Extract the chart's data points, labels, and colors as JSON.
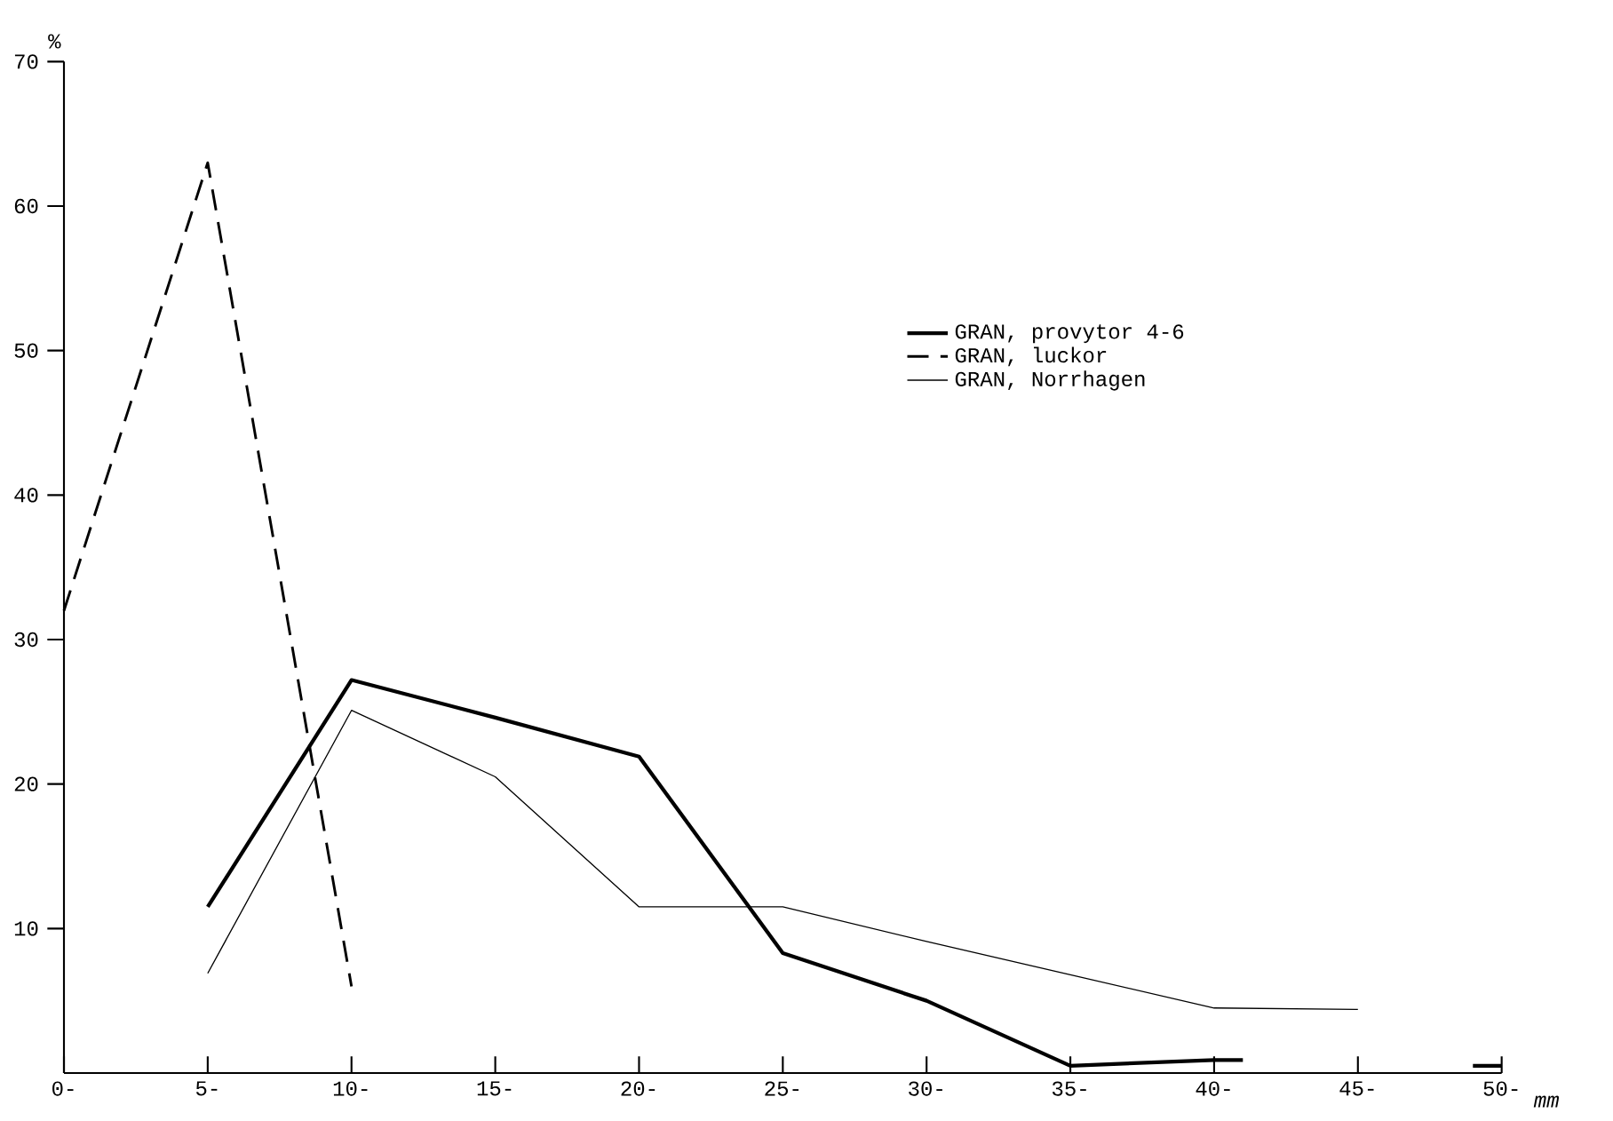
{
  "chart_data": {
    "type": "line",
    "xlabel": "mm",
    "ylabel": "%",
    "xlim": [
      0,
      50
    ],
    "ylim": [
      0,
      70
    ],
    "xticks": [
      {
        "value": 0,
        "label": "0-"
      },
      {
        "value": 5,
        "label": "5-"
      },
      {
        "value": 10,
        "label": "10-"
      },
      {
        "value": 15,
        "label": "15-"
      },
      {
        "value": 20,
        "label": "20-"
      },
      {
        "value": 25,
        "label": "25-"
      },
      {
        "value": 30,
        "label": "30-"
      },
      {
        "value": 35,
        "label": "35-"
      },
      {
        "value": 40,
        "label": "40-"
      },
      {
        "value": 45,
        "label": "45-"
      },
      {
        "value": 50,
        "label": "50-"
      }
    ],
    "yticks": [
      10,
      20,
      30,
      40,
      50,
      60,
      70
    ],
    "legend": "right",
    "series": [
      {
        "name": "GRAN, provytor 4-6",
        "color": "#000000",
        "line_style": "solid",
        "x": [
          5,
          10,
          15,
          20,
          25,
          30,
          35,
          40,
          41,
          45,
          49,
          50
        ],
        "values": [
          11.5,
          27.2,
          24.6,
          21.9,
          8.3,
          5.0,
          0.5,
          0.9,
          0.9,
          null,
          0.5,
          0.5
        ]
      },
      {
        "name": "GRAN, luckor",
        "color": "#000000",
        "line_style": "dashed",
        "x": [
          0,
          5,
          10
        ],
        "values": [
          32,
          63,
          6
        ]
      },
      {
        "name": "GRAN, Norrhagen",
        "color": "#000000",
        "line_style": "solid",
        "x": [
          5,
          10,
          15,
          20,
          25,
          30,
          35,
          40,
          45
        ],
        "values": [
          6.9,
          25.1,
          20.5,
          11.5,
          11.5,
          9.1,
          6.8,
          4.5,
          4.4
        ]
      }
    ]
  }
}
